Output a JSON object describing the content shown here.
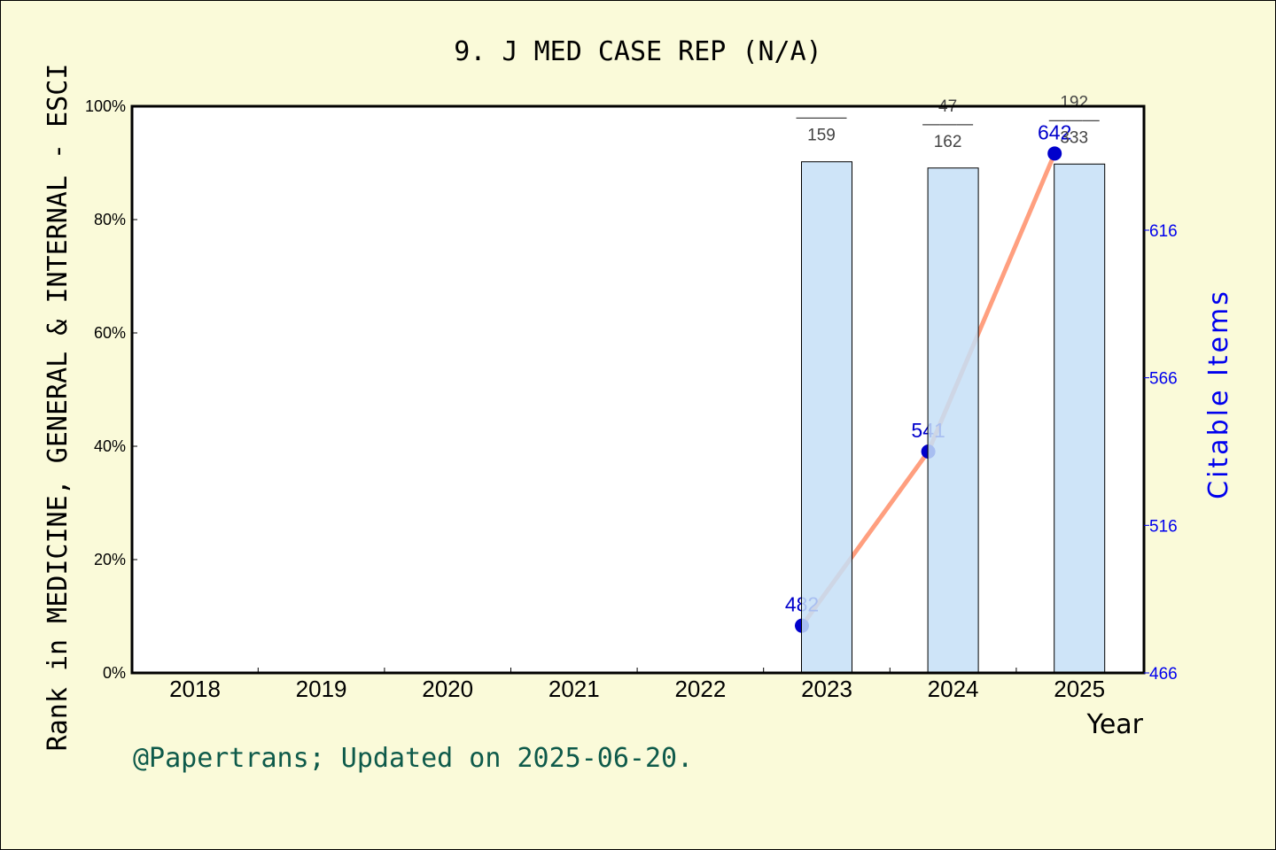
{
  "chart_data": {
    "type": "bar+line",
    "title": "9. J MED CASE REP (N/A)",
    "xlabel": "Year",
    "ylabel": "Rank in MEDICINE, GENERAL & INTERNAL - ESCI",
    "y2label": "Citable Items",
    "categories": [
      "2018",
      "2019",
      "2020",
      "2021",
      "2022",
      "2023",
      "2024",
      "2025"
    ],
    "ylim": [
      0,
      100
    ],
    "yticks": [
      "0%",
      "20%",
      "40%",
      "60%",
      "80%",
      "100%"
    ],
    "y2lim": [
      466,
      658
    ],
    "y2ticks": [
      "466",
      "516",
      "566",
      "616"
    ],
    "series": [
      {
        "name": "Rank percentile",
        "type": "bar",
        "color": "#c5dff7",
        "values": [
          null,
          null,
          null,
          null,
          null,
          90.2,
          89.1,
          89.8
        ],
        "labels": [
          null,
          null,
          null,
          null,
          null,
          {
            "rank": "",
            "total": "159"
          },
          {
            "rank": "47",
            "total": "162"
          },
          {
            "rank": "192",
            "total": "333"
          }
        ]
      },
      {
        "name": "Citable Items",
        "type": "line",
        "color": "#ff9f7f",
        "marker_color": "#0000cc",
        "values": [
          null,
          null,
          null,
          null,
          null,
          482,
          541,
          642
        ]
      }
    ],
    "grid": false,
    "legend": "none"
  },
  "footer": "@Papertrans; Updated on 2025-06-20.",
  "colors": {
    "background": "#fafad9",
    "plot_background": "#ffffff",
    "bar_fill": "#c5dff7",
    "line": "#ff9f7f",
    "marker": "#0000cc",
    "right_axis": "#0000ee",
    "footer": "#0e5a4a"
  }
}
